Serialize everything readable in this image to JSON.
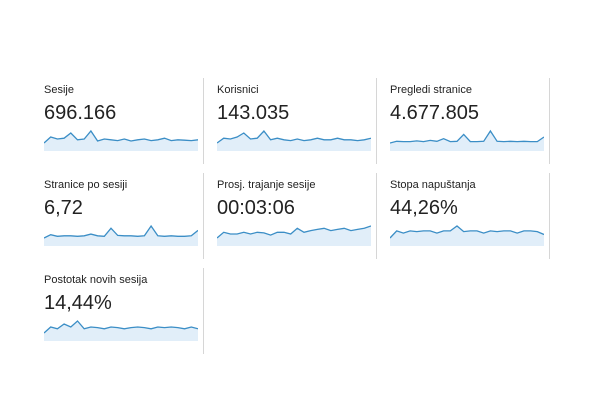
{
  "metrics": [
    {
      "label": "Sesije",
      "value": "696.166",
      "trend": [
        30,
        45,
        40,
        42,
        55,
        38,
        40,
        60,
        35,
        40,
        38,
        36,
        40,
        35,
        38,
        40,
        36,
        38,
        42,
        36,
        38,
        37,
        36,
        38
      ]
    },
    {
      "label": "Korisnici",
      "value": "143.035",
      "trend": [
        30,
        42,
        40,
        45,
        55,
        40,
        42,
        60,
        38,
        42,
        38,
        36,
        40,
        36,
        38,
        42,
        38,
        38,
        42,
        38,
        38,
        36,
        38,
        42
      ]
    },
    {
      "label": "Pregledi stranice",
      "value": "4.677.805",
      "trend": [
        20,
        30,
        28,
        28,
        32,
        28,
        35,
        30,
        45,
        28,
        30,
        70,
        28,
        28,
        30,
        90,
        30,
        28,
        30,
        28,
        30,
        28,
        28,
        55
      ]
    },
    {
      "label": "Stranice po sesiji",
      "value": "6,72",
      "trend": [
        20,
        35,
        28,
        30,
        30,
        28,
        30,
        38,
        30,
        28,
        65,
        32,
        30,
        30,
        28,
        30,
        75,
        30,
        28,
        30,
        28,
        28,
        30,
        55
      ]
    },
    {
      "label": "Prosj. trajanje sesije",
      "value": "00:03:06",
      "trend": [
        45,
        55,
        52,
        52,
        55,
        52,
        55,
        54,
        50,
        55,
        55,
        52,
        62,
        55,
        58,
        60,
        62,
        58,
        60,
        62,
        58,
        60,
        62,
        66
      ]
    },
    {
      "label": "Stopa napuštanja",
      "value": "44,26%",
      "trend": [
        45,
        55,
        52,
        55,
        54,
        55,
        55,
        52,
        55,
        55,
        62,
        54,
        55,
        55,
        52,
        55,
        54,
        55,
        55,
        52,
        55,
        55,
        54,
        50
      ]
    },
    {
      "label": "Postotak novih sesija",
      "value": "14,44%",
      "trend": [
        45,
        55,
        52,
        60,
        55,
        65,
        52,
        55,
        54,
        52,
        55,
        54,
        52,
        54,
        55,
        54,
        52,
        55,
        54,
        55,
        54,
        52,
        55,
        52
      ]
    }
  ]
}
